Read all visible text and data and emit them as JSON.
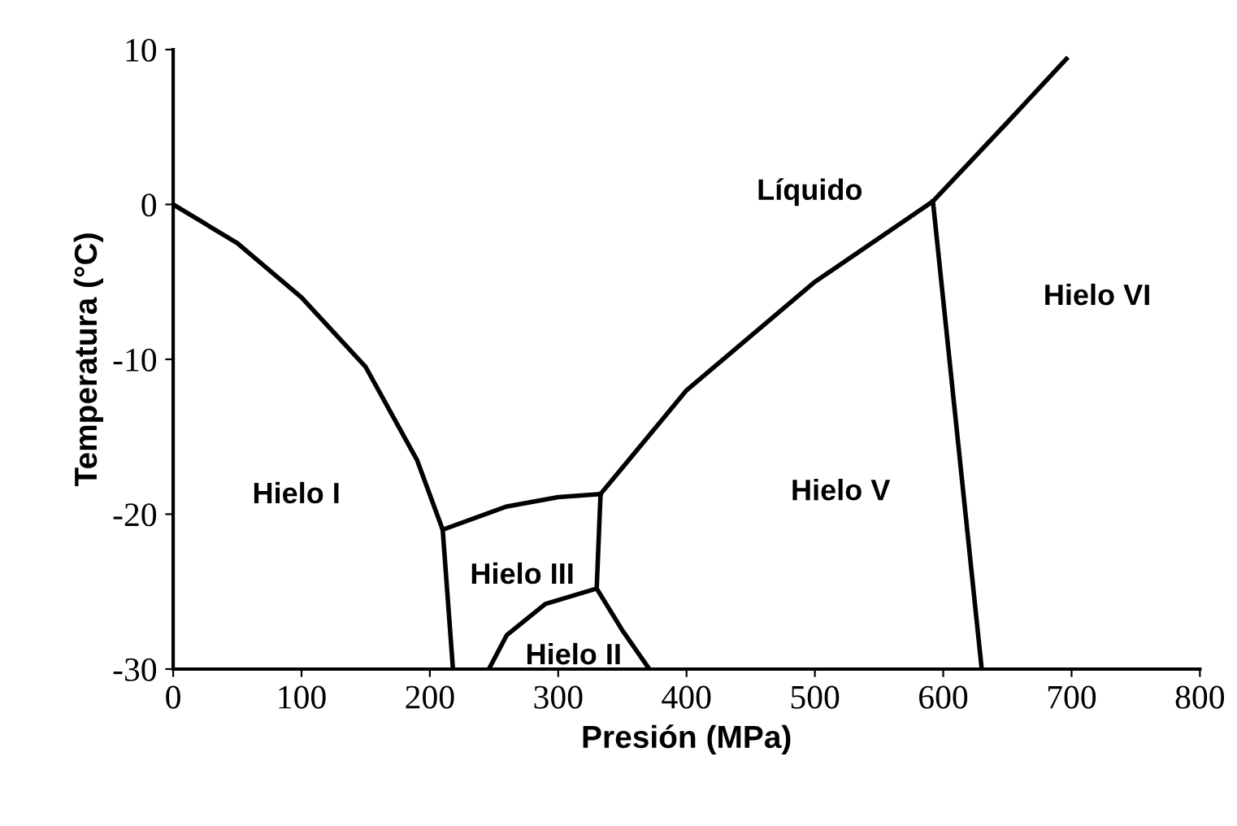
{
  "chart_data": {
    "type": "line",
    "xlabel": "Presión (MPa)",
    "ylabel": "Temperatura (°C)",
    "xlim": [
      0,
      800
    ],
    "ylim": [
      -30,
      10
    ],
    "xticks": [
      0,
      100,
      200,
      300,
      400,
      500,
      600,
      700,
      800
    ],
    "yticks": [
      -30,
      -20,
      -10,
      0,
      10
    ],
    "grid": false,
    "marker": "none",
    "line_style": "solid",
    "series": [
      {
        "color": "#000000",
        "x": [
          0,
          50,
          100,
          150,
          190,
          210,
          218
        ],
        "values": [
          0,
          -2.5,
          -6,
          -10.5,
          -16.5,
          -21,
          -30
        ]
      },
      {
        "color": "#000000",
        "x": [
          210,
          260,
          300,
          333
        ],
        "values": [
          -21,
          -19.5,
          -18.9,
          -18.7
        ]
      },
      {
        "color": "#000000",
        "x": [
          333,
          330
        ],
        "values": [
          -18.7,
          -24.8
        ]
      },
      {
        "color": "#000000",
        "x": [
          330,
          350,
          371
        ],
        "values": [
          -24.8,
          -27.5,
          -30
        ]
      },
      {
        "color": "#000000",
        "x": [
          330,
          290,
          260,
          246
        ],
        "values": [
          -24.8,
          -25.8,
          -27.8,
          -30
        ]
      },
      {
        "color": "#000000",
        "x": [
          333,
          400,
          500,
          592,
          650,
          696
        ],
        "values": [
          -18.7,
          -12,
          -5,
          0.2,
          5.3,
          9.4
        ]
      },
      {
        "color": "#000000",
        "x": [
          592,
          630
        ],
        "values": [
          0.2,
          -30
        ]
      }
    ],
    "annotations": [
      "Hielo I",
      "Hielo III",
      "Hielo II",
      "Hielo V",
      "Hielo VI",
      "Líquido"
    ]
  }
}
